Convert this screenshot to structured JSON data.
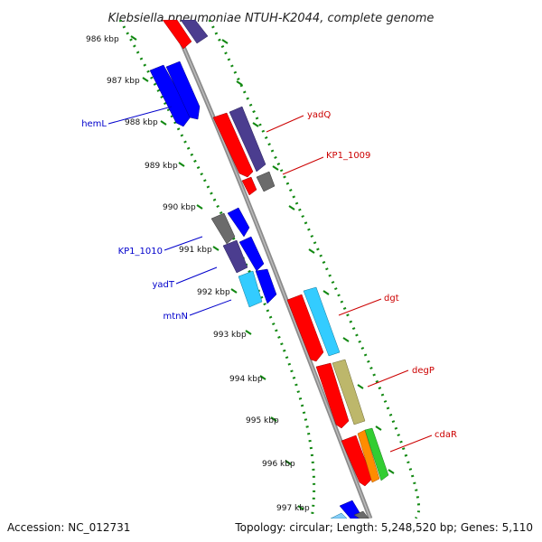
{
  "title": "Klebsiella pneumoniae NTUH-K2044, complete genome",
  "footer": {
    "accession": "Accession: NC_012731",
    "stats": "Topology: circular; Length: 5,248,520 bp; Genes: 5,110"
  },
  "tick_labels": [
    "986 kbp",
    "987 kbp",
    "988 kbp",
    "989 kbp",
    "990 kbp",
    "991 kbp",
    "992 kbp",
    "993 kbp",
    "994 kbp",
    "995 kbp",
    "996 kbp",
    "997 kbp"
  ],
  "gene_labels": [
    {
      "name": "hemL",
      "strand": "minus",
      "color": "#0000cc"
    },
    {
      "name": "KP1_1010",
      "strand": "minus",
      "color": "#0000cc"
    },
    {
      "name": "yadT",
      "strand": "minus",
      "color": "#0000cc"
    },
    {
      "name": "mtnN",
      "strand": "minus",
      "color": "#0000cc"
    },
    {
      "name": "yadQ",
      "strand": "plus",
      "color": "#cc0000"
    },
    {
      "name": "KP1_1009",
      "strand": "plus",
      "color": "#cc0000"
    },
    {
      "name": "dgt",
      "strand": "plus",
      "color": "#cc0000"
    },
    {
      "name": "degP",
      "strand": "plus",
      "color": "#cc0000"
    },
    {
      "name": "cdaR",
      "strand": "plus",
      "color": "#cc0000"
    }
  ],
  "colors": {
    "red": "#ff0000",
    "blue": "#0000ff",
    "purple": "#4b3d8f",
    "gray": "#6b6b6b",
    "cyan": "#33ccff",
    "khaki": "#bdb76b",
    "orange": "#ff8c00",
    "green": "#32cd32",
    "backbone": "#8c8c8c",
    "ticks": "#118811"
  }
}
